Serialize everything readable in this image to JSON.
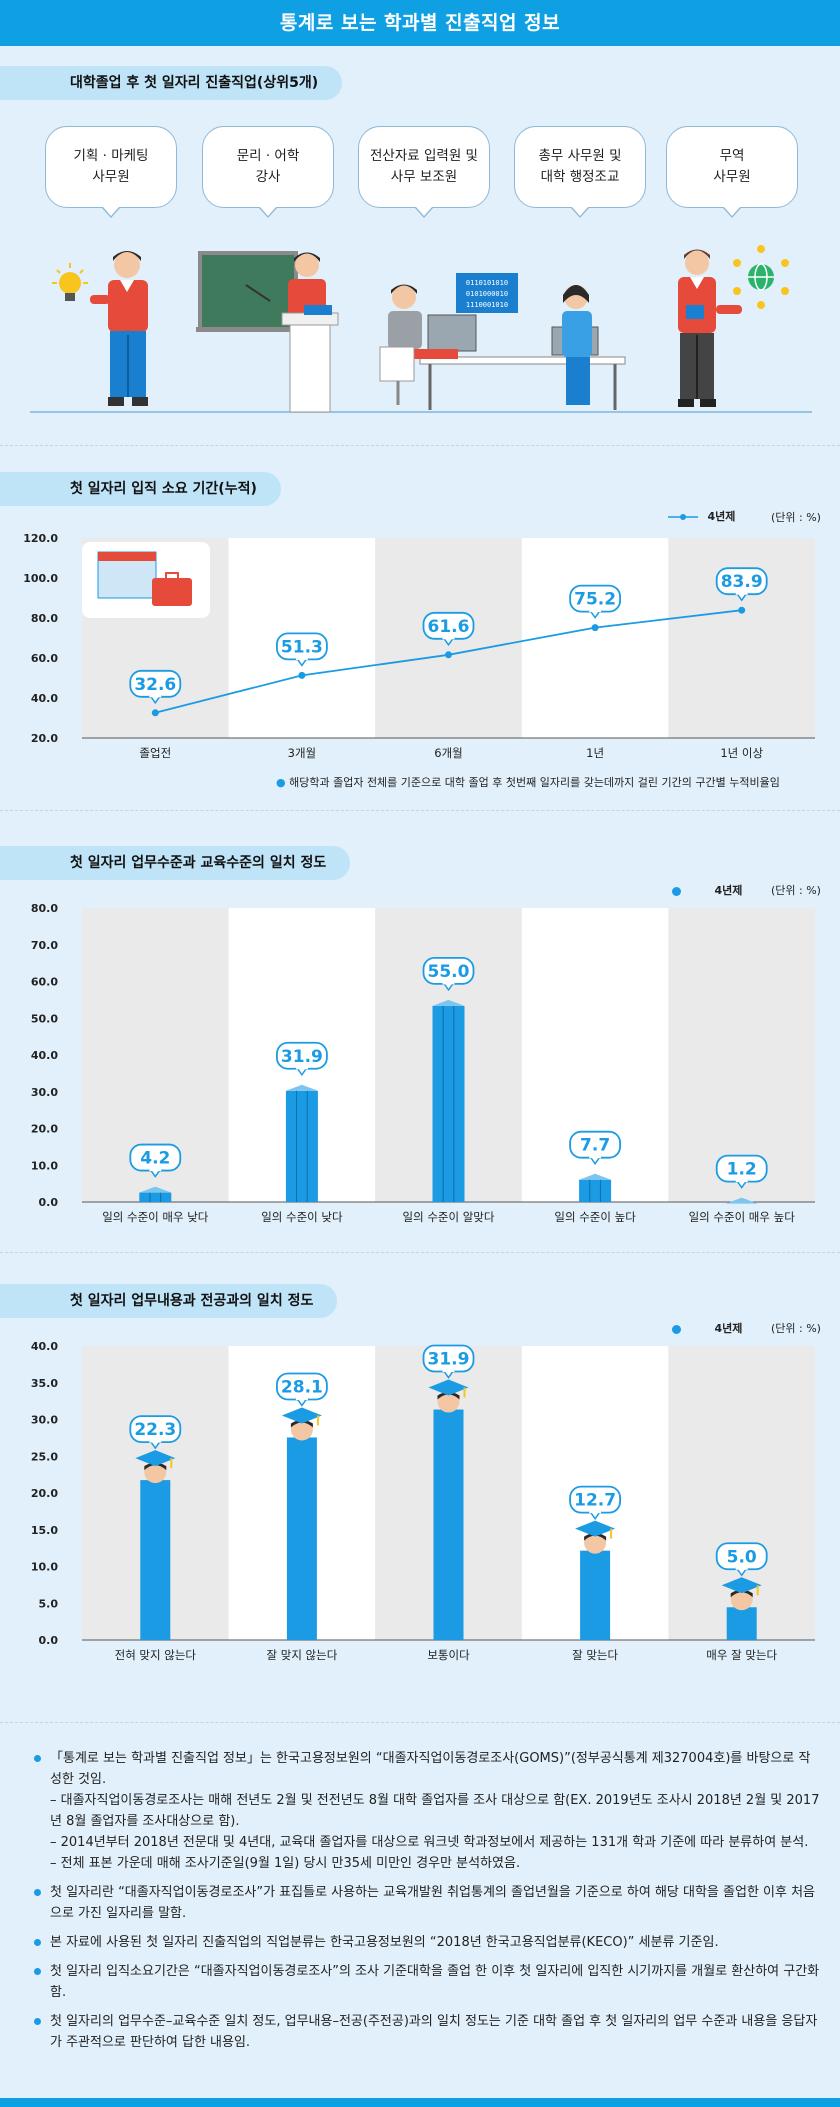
{
  "header": {
    "title": "통계로 보는 학과별 진출직업 정보"
  },
  "section1": {
    "title": "대학졸업 후 첫 일자리 진출직업(상위5개)",
    "jobs": [
      "기획 · 마케팅\n사무원",
      "문리 · 어학\n강사",
      "전산자료 입력원 및\n사무 보조원",
      "총무 사무원 및\n대학 행정조교",
      "무역\n사무원"
    ],
    "screen_code": [
      "0110101010",
      "0101000010",
      "1110001010"
    ]
  },
  "charts": {
    "unit": "(단위 : %)",
    "legend_label": "4년제",
    "chart1_note": "해당학과 졸업자 전체를 기준으로 대학 졸업 후 첫번째 일자리를 갖는데까지 걸린 기간의 구간별 누적비율임"
  },
  "chart_data": [
    {
      "type": "line",
      "title": "첫 일자리 입직 소요 기간(누적)",
      "categories": [
        "졸업전",
        "3개월",
        "6개월",
        "1년",
        "1년 이상"
      ],
      "series": [
        {
          "name": "4년제",
          "values": [
            32.6,
            51.3,
            61.6,
            75.2,
            83.9
          ]
        }
      ],
      "ylim": [
        20,
        120
      ],
      "yticks": [
        "120.0",
        "100.0",
        "80.0",
        "60.0",
        "40.0",
        "20.0"
      ],
      "ytick_values": [
        120,
        100,
        80,
        60,
        40,
        20
      ],
      "labels": [
        "32.6",
        "51.3",
        "61.6",
        "75.2",
        "83.9"
      ],
      "color": "#1a9be3"
    },
    {
      "type": "bar",
      "title": "첫 일자리 업무수준과 교육수준의 일치 정도",
      "categories": [
        "일의 수준이 매우 낮다",
        "일의 수준이 낮다",
        "일의 수준이 알맞다",
        "일의 수준이 높다",
        "일의 수준이 매우 높다"
      ],
      "series": [
        {
          "name": "4년제",
          "values": [
            4.2,
            31.9,
            55.0,
            7.7,
            1.2
          ]
        }
      ],
      "ylim": [
        0,
        80
      ],
      "yticks": [
        "80.0",
        "70.0",
        "60.0",
        "50.0",
        "40.0",
        "30.0",
        "20.0",
        "10.0",
        "0.0"
      ],
      "ytick_values": [
        80,
        70,
        60,
        50,
        40,
        30,
        20,
        10,
        0
      ],
      "labels": [
        "4.2",
        "31.9",
        "55.0",
        "7.7",
        "1.2"
      ],
      "color": "#1a9be3"
    },
    {
      "type": "bar",
      "title": "첫 일자리 업무내용과 전공과의 일치 정도",
      "categories": [
        "전혀 맞지 않는다",
        "잘 맞지 않는다",
        "보통이다",
        "잘 맞는다",
        "매우 잘 맞는다"
      ],
      "series": [
        {
          "name": "4년제",
          "values": [
            22.3,
            28.1,
            31.9,
            12.7,
            5.0
          ]
        }
      ],
      "ylim": [
        0,
        40
      ],
      "yticks": [
        "40.0",
        "35.0",
        "30.0",
        "25.0",
        "20.0",
        "15.0",
        "10.0",
        "5.0",
        "0.0"
      ],
      "ytick_values": [
        40,
        35,
        30,
        25,
        20,
        15,
        10,
        5,
        0
      ],
      "labels": [
        "22.3",
        "28.1",
        "31.9",
        "12.7",
        "5.0"
      ],
      "color": "#1a9be3"
    }
  ],
  "notes": [
    {
      "text": "「통계로 보는 학과별 진출직업 정보」는 한국고용정보원의 “대졸자직업이동경로조사(GOMS)”(정부공식통계 제327004호)를 바탕으로 작성한 것임.",
      "subs": [
        "– 대졸자직업이동경로조사는 매해 전년도 2월 및 전전년도 8월 대학 졸업자를 조사 대상으로 함(EX. 2019년도 조사시 2018년 2월 및 2017년 8월 졸업자를 조사대상으로 함).",
        "– 2014년부터 2018년 전문대 및 4년대, 교육대 졸업자를 대상으로 워크넷 학과정보에서 제공하는 131개 학과 기준에 따라 분류하여 분석.",
        "– 전체 표본 가운데 매해 조사기준일(9월 1일) 당시 만35세 미만인 경우만 분석하였음."
      ]
    },
    {
      "text": "첫 일자리란 “대졸자직업이동경로조사”가 표집틀로 사용하는 교육개발원 취업통계의 졸업년월을 기준으로 하여 해당 대학을 졸업한 이후 처음으로 가진 일자리를 말함.",
      "subs": []
    },
    {
      "text": "본 자료에 사용된 첫 일자리 진출직업의 직업분류는 한국고용정보원의 “2018년 한국고용직업분류(KECO)” 세분류 기준임.",
      "subs": []
    },
    {
      "text": "첫 일자리 입직소요기간은 “대졸자직업이동경로조사”의 조사 기준대학을 졸업 한 이후 첫 일자리에 입직한 시기까지를 개월로 환산하여 구간화함.",
      "subs": []
    },
    {
      "text": "첫 일자리의 업무수준–교육수준 일치 정도, 업무내용–전공(주전공)과의 일치 정도는 기준 대학 졸업 후 첫 일자리의 업무 수준과 내용을 응답자가 주관적으로 판단하여 답한 내용임.",
      "subs": []
    }
  ]
}
